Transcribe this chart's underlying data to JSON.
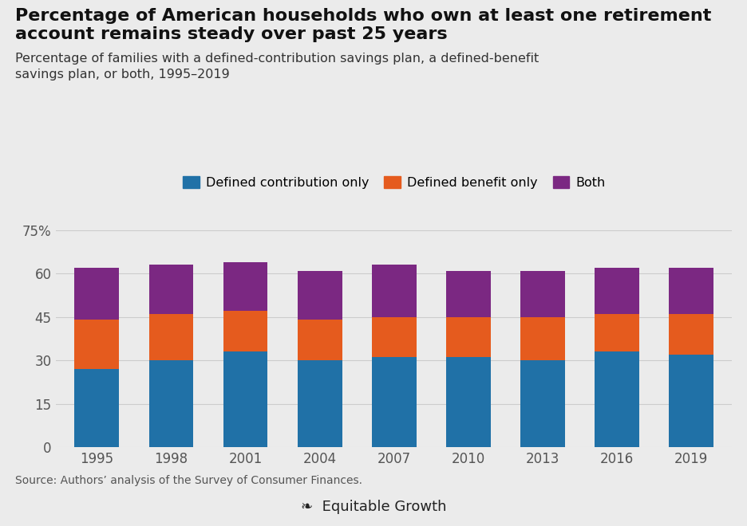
{
  "years": [
    "1995",
    "1998",
    "2001",
    "2004",
    "2007",
    "2010",
    "2013",
    "2016",
    "2019"
  ],
  "defined_contribution_only": [
    27,
    30,
    33,
    30,
    31,
    31,
    30,
    33,
    32
  ],
  "defined_benefit_only": [
    17,
    16,
    14,
    14,
    14,
    14,
    15,
    13,
    14
  ],
  "both": [
    18,
    17,
    17,
    17,
    18,
    16,
    16,
    16,
    16
  ],
  "colors": {
    "defined_contribution": "#2071a7",
    "defined_benefit": "#e55b1e",
    "both": "#7b2882"
  },
  "legend_labels": [
    "Defined contribution only",
    "Defined benefit only",
    "Both"
  ],
  "title_line1": "Percentage of American households who own at least one retirement",
  "title_line2": "account remains steady over past 25 years",
  "subtitle_line1": "Percentage of families with a defined-contribution savings plan, a defined-benefit",
  "subtitle_line2": "savings plan, or both, 1995–2019",
  "source": "Source: Authors’ analysis of the Survey of Consumer Finances.",
  "brand": "Equitable Growth",
  "ytick_values": [
    0,
    15,
    30,
    45,
    60,
    75
  ],
  "ylim_max": 80,
  "background_color": "#ebebeb"
}
